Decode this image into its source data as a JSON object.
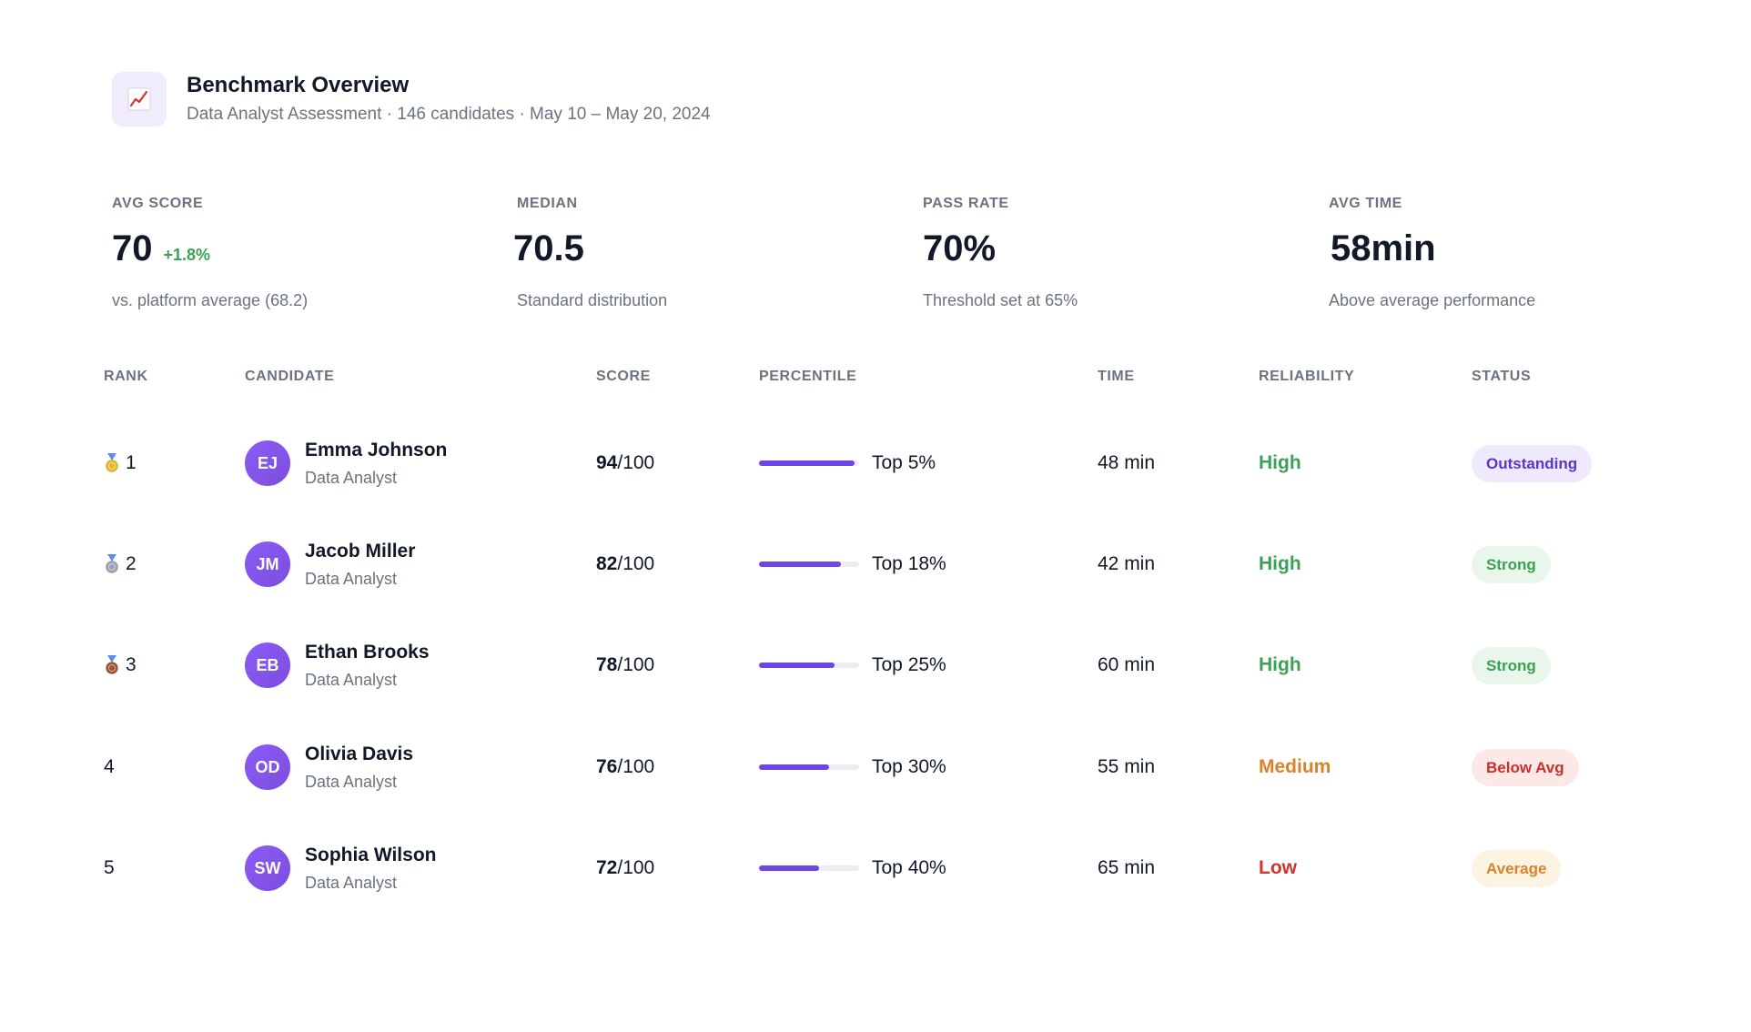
{
  "header": {
    "icon": "chart-line-icon",
    "title": "Benchmark Overview",
    "subtitle": "Data Analyst Assessment · 146 candidates · May 10 – May 20, 2024"
  },
  "stats": [
    {
      "label": "AVG SCORE",
      "value": "70",
      "delta": "+1.8%",
      "note": "vs. platform average (68.2)"
    },
    {
      "label": "MEDIAN",
      "value": "70.5",
      "delta": "",
      "note": "Standard distribution"
    },
    {
      "label": "PASS RATE",
      "value": "70%",
      "delta": "",
      "note": "Threshold set at 65%"
    },
    {
      "label": "AVG TIME",
      "value": "58min",
      "delta": "",
      "note": "Above average performance"
    }
  ],
  "table": {
    "headers": {
      "rank": "RANK",
      "candidate": "CANDIDATE",
      "score": "SCORE",
      "percentile": "PERCENTILE",
      "time": "TIME",
      "reliability": "RELIABILITY",
      "status": "STATUS"
    },
    "rows": [
      {
        "medal": "gold",
        "rank": "1",
        "initials": "EJ",
        "name": "Emma Johnson",
        "role": "Data Analyst",
        "score": "94",
        "score_max": "/100",
        "percentile_fill": 0.95,
        "percentile": "Top 5%",
        "time": "48 min",
        "reliability": "High",
        "status": "Outstanding"
      },
      {
        "medal": "silver",
        "rank": "2",
        "initials": "JM",
        "name": "Jacob Miller",
        "role": "Data Analyst",
        "score": "82",
        "score_max": "/100",
        "percentile_fill": 0.82,
        "percentile": "Top 18%",
        "time": "42 min",
        "reliability": "High",
        "status": "Strong"
      },
      {
        "medal": "bronze",
        "rank": "3",
        "initials": "EB",
        "name": "Ethan Brooks",
        "role": "Data Analyst",
        "score": "78",
        "score_max": "/100",
        "percentile_fill": 0.75,
        "percentile": "Top 25%",
        "time": "60 min",
        "reliability": "High",
        "status": "Strong"
      },
      {
        "medal": "",
        "rank": "4",
        "initials": "OD",
        "name": "Olivia Davis",
        "role": "Data Analyst",
        "score": "76",
        "score_max": "/100",
        "percentile_fill": 0.7,
        "percentile": "Top 30%",
        "time": "55 min",
        "reliability": "Medium",
        "status": "Below Avg"
      },
      {
        "medal": "",
        "rank": "5",
        "initials": "SW",
        "name": "Sophia Wilson",
        "role": "Data Analyst",
        "score": "72",
        "score_max": "/100",
        "percentile_fill": 0.6,
        "percentile": "Top 40%",
        "time": "65 min",
        "reliability": "Low",
        "status": "Average"
      }
    ]
  },
  "colors": {
    "accent": "#6d47e6",
    "positive": "#3aa155",
    "reliability": {
      "High": "#3aa155",
      "Medium": "#d9822b",
      "Low": "#d0342c"
    },
    "status": {
      "Outstanding": {
        "bg": "#efe9fd",
        "fg": "#5b34c8"
      },
      "Strong": {
        "bg": "#e9f6ec",
        "fg": "#3aa155"
      },
      "Below Avg": {
        "bg": "#fbe8e7",
        "fg": "#c9302c"
      },
      "Average": {
        "bg": "#fdf3e3",
        "fg": "#d9822b"
      }
    },
    "medals": {
      "gold": "#e8b923",
      "silver": "#9ca3af",
      "bronze": "#a0522d"
    }
  }
}
